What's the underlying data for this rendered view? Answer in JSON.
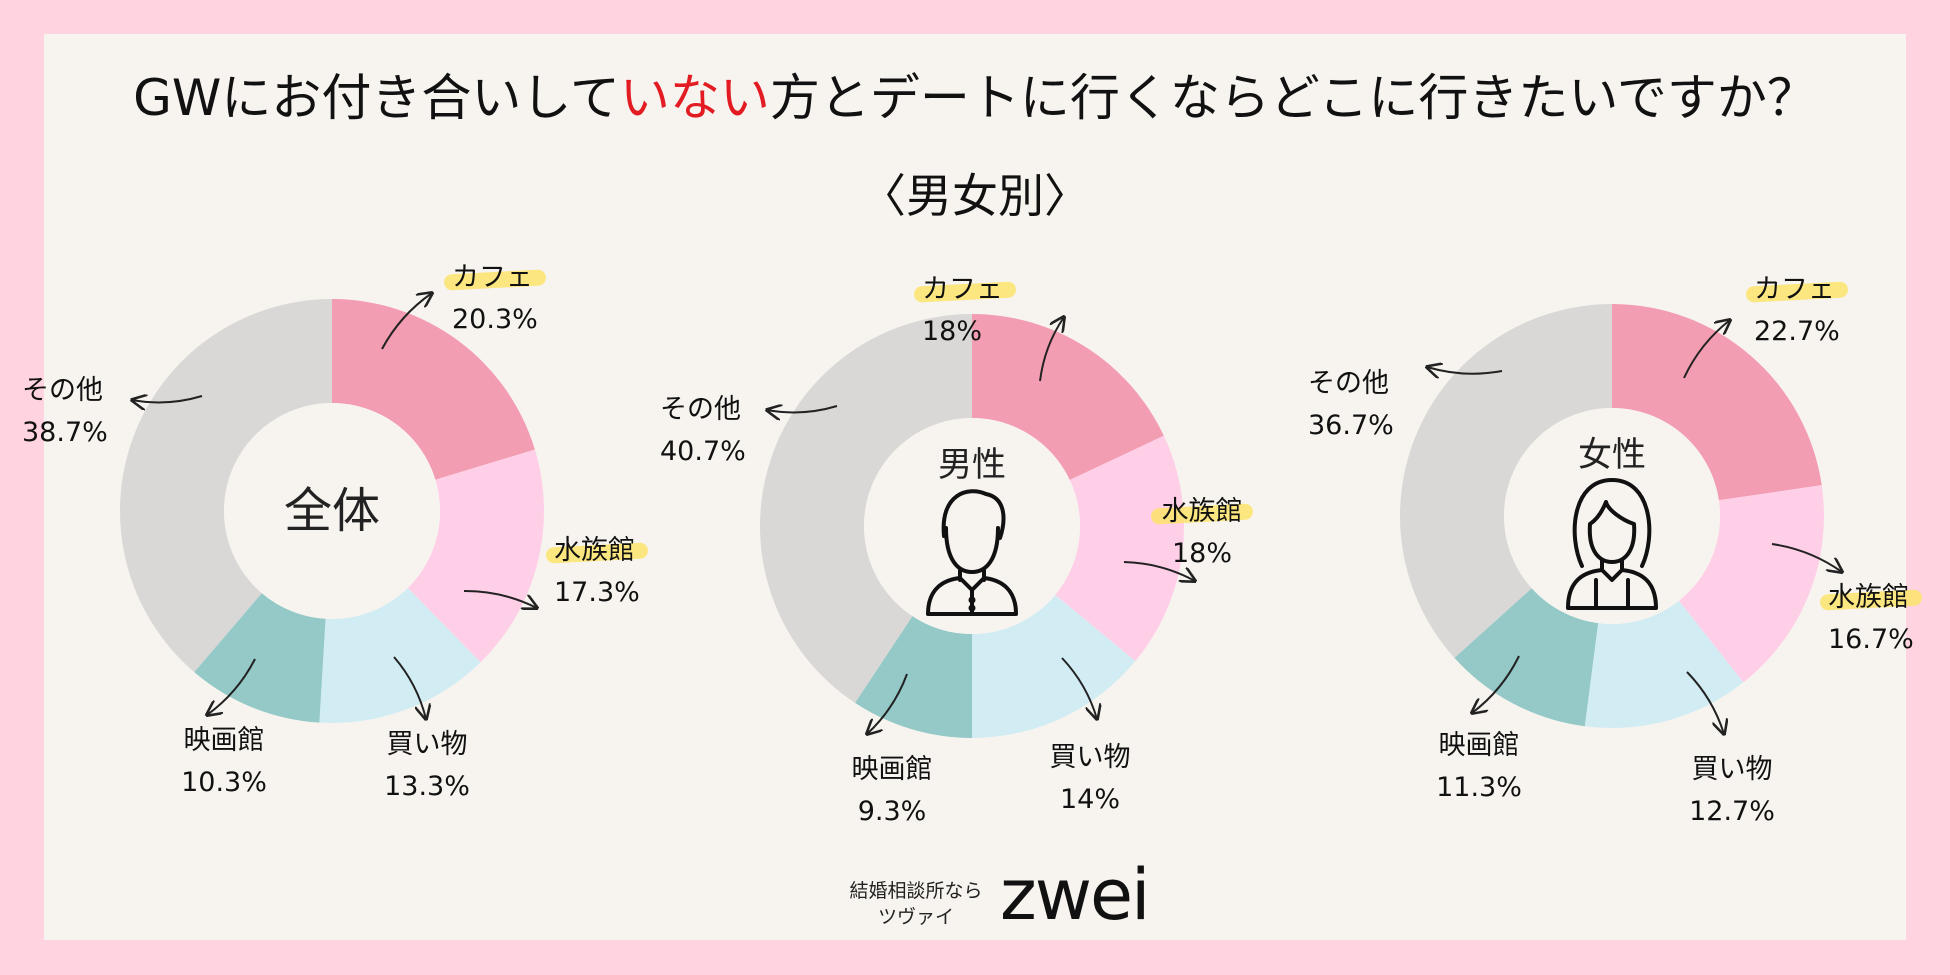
{
  "title": {
    "before": "GWにお付き合いして",
    "highlight": "いない",
    "after": "方とデートに行くならどこに行きたいですか？"
  },
  "subtitle": "〈男女別〉",
  "colors": {
    "cafe": "#f39db2",
    "aquarium": "#ffcfe8",
    "shopping": "#d2ecf4",
    "cinema": "#94c9c8",
    "other": "#d9d8d6",
    "title_highlight": "#e21c22",
    "label_marker": "#fde36b"
  },
  "chart_data": [
    {
      "type": "pie",
      "center_label": "全体",
      "categories": [
        "カフェ",
        "水族館",
        "買い物",
        "映画館",
        "その他"
      ],
      "values": [
        20.3,
        17.3,
        13.3,
        10.3,
        38.7
      ],
      "value_labels": [
        "20.3%",
        "17.3%",
        "13.3%",
        "10.3%",
        "38.7%"
      ],
      "highlighted_categories": [
        "カフェ",
        "水族館"
      ]
    },
    {
      "type": "pie",
      "center_label": "男性",
      "center_icon": "man-icon",
      "categories": [
        "カフェ",
        "水族館",
        "買い物",
        "映画館",
        "その他"
      ],
      "values": [
        18,
        18,
        14,
        9.3,
        40.7
      ],
      "value_labels": [
        "18%",
        "18%",
        "14%",
        "9.3%",
        "40.7%"
      ],
      "highlighted_categories": [
        "カフェ",
        "水族館"
      ]
    },
    {
      "type": "pie",
      "center_label": "女性",
      "center_icon": "woman-icon",
      "categories": [
        "カフェ",
        "水族館",
        "買い物",
        "映画館",
        "その他"
      ],
      "values": [
        22.7,
        16.7,
        12.7,
        11.3,
        36.7
      ],
      "value_labels": [
        "22.7%",
        "16.7%",
        "12.7%",
        "11.3%",
        "36.7%"
      ],
      "highlighted_categories": [
        "カフェ",
        "水族館"
      ]
    }
  ],
  "brand": {
    "tagline_line1": "結婚相談所なら",
    "tagline_line2": "ツヴァイ",
    "logo_text": "zwei"
  }
}
